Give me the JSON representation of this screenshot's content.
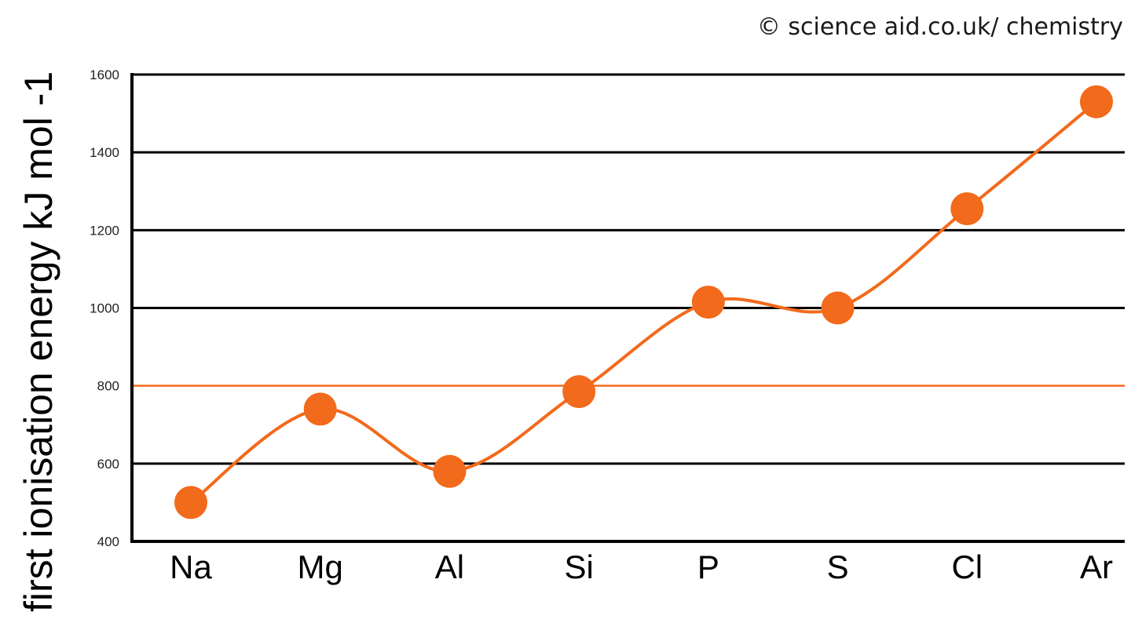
{
  "credit": "© science aid.co.uk/ chemistry",
  "colors": {
    "series": "#f26a1b",
    "grid": "#000000",
    "axis": "#000000",
    "background": "#ffffff"
  },
  "chart_data": {
    "type": "line",
    "title": "",
    "xlabel": "",
    "ylabel": "first ionisation energy kJ mol -1",
    "categories": [
      "Na",
      "Mg",
      "Al",
      "Si",
      "P",
      "S",
      "Cl",
      "Ar"
    ],
    "series": [
      {
        "values": [
          500,
          740,
          580,
          785,
          1015,
          1000,
          1255,
          1530
        ]
      }
    ],
    "yticks": [
      400,
      600,
      800,
      1000,
      1200,
      1400,
      1600
    ],
    "ytick_labels": [
      "400",
      "600",
      "800",
      "1000",
      "1200",
      "1400",
      "1600"
    ],
    "ylim": [
      400,
      1600
    ],
    "grid": true,
    "highlighted_gridline": 800,
    "smooth_line": true,
    "markers": "filled-circle"
  }
}
